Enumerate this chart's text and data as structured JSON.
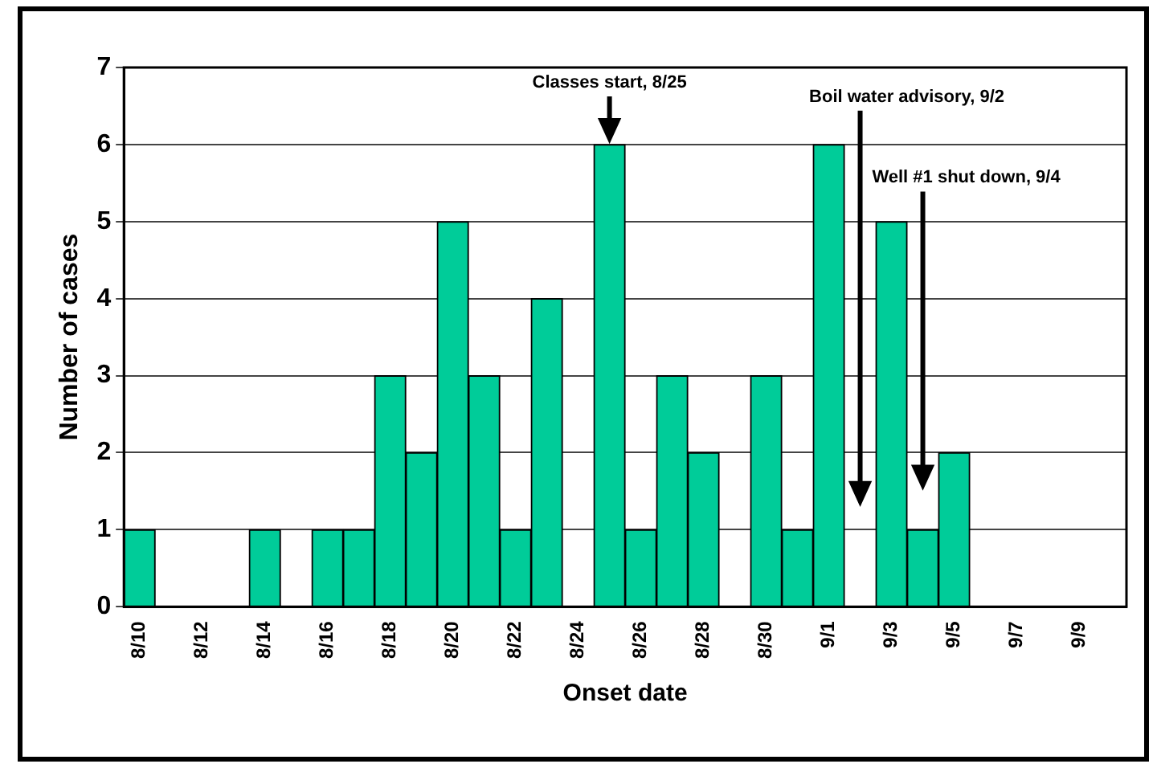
{
  "chart_data": {
    "type": "bar",
    "xlabel": "Onset date",
    "ylabel": "Number of cases",
    "x": [
      "--08-10",
      "--08-11",
      "--08-12",
      "--08-13",
      "--08-14",
      "--08-15",
      "--08-16",
      "--08-17",
      "--08-18",
      "--08-19",
      "--08-20",
      "--08-21",
      "--08-22",
      "--08-23",
      "--08-24",
      "--08-25",
      "--08-26",
      "--08-27",
      "--08-28",
      "--08-29",
      "--08-30",
      "--08-31",
      "--09-01",
      "--09-02",
      "--09-03",
      "--09-04",
      "--09-05",
      "--09-06",
      "--09-07",
      "--09-08",
      "--09-09"
    ],
    "values": [
      1,
      0,
      0,
      0,
      1,
      0,
      1,
      1,
      3,
      2,
      5,
      3,
      1,
      4,
      0,
      6,
      1,
      3,
      2,
      0,
      3,
      1,
      6,
      0,
      5,
      1,
      2,
      0,
      0,
      0,
      0
    ],
    "color": "#00cc99",
    "xlim": [
      "--08-09T12:00",
      "--09-10T12:00"
    ],
    "xticks": [
      {
        "value": "--08-10",
        "label": "8/10"
      },
      {
        "value": "--08-12",
        "label": "8/12"
      },
      {
        "value": "--08-14",
        "label": "8/14"
      },
      {
        "value": "--08-16",
        "label": "8/16"
      },
      {
        "value": "--08-18",
        "label": "8/18"
      },
      {
        "value": "--08-20",
        "label": "8/20"
      },
      {
        "value": "--08-22",
        "label": "8/22"
      },
      {
        "value": "--08-24",
        "label": "8/24"
      },
      {
        "value": "--08-26",
        "label": "8/26"
      },
      {
        "value": "--08-28",
        "label": "8/28"
      },
      {
        "value": "--08-30",
        "label": "8/30"
      },
      {
        "value": "--09-01",
        "label": "9/1"
      },
      {
        "value": "--09-03",
        "label": "9/3"
      },
      {
        "value": "--09-05",
        "label": "9/5"
      },
      {
        "value": "--09-07",
        "label": "9/7"
      },
      {
        "value": "--09-09",
        "label": "9/9"
      }
    ],
    "ylim": [
      0,
      7
    ],
    "yticks": [
      0,
      1,
      2,
      3,
      4,
      5,
      6,
      7
    ],
    "grid": "y",
    "annotations": [
      {
        "text": "Classes start, 8/25",
        "x": "--08-25",
        "y": 6
      }
    ],
    "ref_lines": [
      {
        "axis": "x",
        "value": "--09-02",
        "label": "Boil water advisory, 9/2"
      },
      {
        "axis": "x",
        "value": "--09-04",
        "label": "Well #1 shut down, 9/4"
      }
    ]
  }
}
